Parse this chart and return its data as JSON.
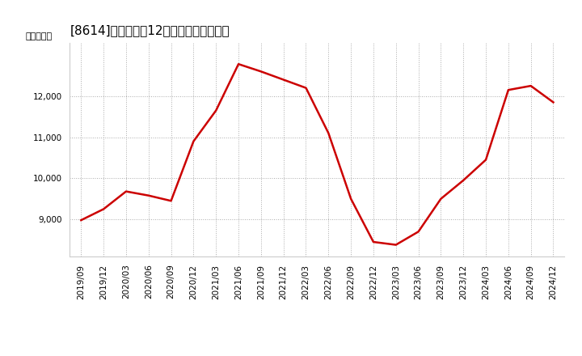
{
  "title": "[8614]　売上高の12か月移動合計の推移",
  "ylabel": "（百万円）",
  "line_color": "#cc0000",
  "bg_color": "#ffffff",
  "plot_bg_color": "#ffffff",
  "grid_color": "#aaaaaa",
  "dates": [
    "2019/09",
    "2019/12",
    "2020/03",
    "2020/06",
    "2020/09",
    "2020/12",
    "2021/03",
    "2021/06",
    "2021/09",
    "2021/12",
    "2022/03",
    "2022/06",
    "2022/09",
    "2022/12",
    "2023/03",
    "2023/06",
    "2023/09",
    "2023/12",
    "2024/03",
    "2024/06",
    "2024/09",
    "2024/12"
  ],
  "values": [
    8980,
    9250,
    9680,
    9580,
    9450,
    10900,
    11650,
    12780,
    12600,
    12400,
    12200,
    11100,
    9500,
    8450,
    8380,
    8700,
    9500,
    9950,
    10450,
    12150,
    12250,
    11850
  ],
  "yticks": [
    9000,
    10000,
    11000,
    12000
  ],
  "ylim_min": 8100,
  "ylim_max": 13300,
  "title_fontsize": 11,
  "label_fontsize": 8,
  "tick_fontsize": 7.5
}
